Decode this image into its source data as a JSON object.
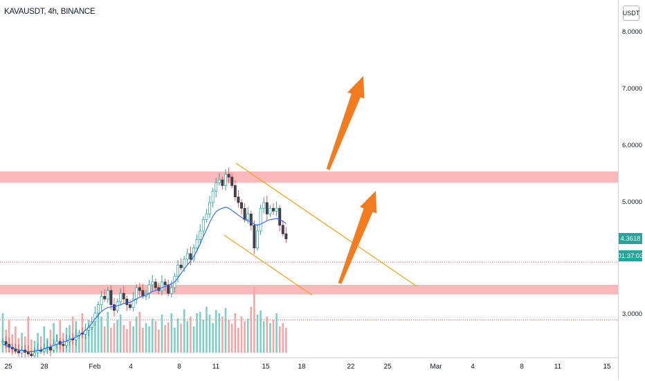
{
  "header": {
    "symbol_title": "KAVAUSDT, 4h, BINANCE"
  },
  "price_scale": {
    "currency": "USDT",
    "ticks": [
      {
        "value": 8.0,
        "label": "8.0000"
      },
      {
        "value": 7.0,
        "label": "7.0000"
      },
      {
        "value": 6.0,
        "label": "6.0000"
      },
      {
        "value": 5.0,
        "label": "5.0000"
      },
      {
        "value": 3.0,
        "label": "3.0000"
      }
    ],
    "last_price": "4.3618",
    "countdown": "01:37:03"
  },
  "time_axis": {
    "labels": [
      "25",
      "28",
      "Feb",
      "4",
      "8",
      "11",
      "15",
      "18",
      "22",
      "25",
      "Mar",
      "4",
      "8",
      "11",
      "15"
    ]
  },
  "colors": {
    "up": "#26a69a",
    "down": "#ef5350",
    "body_up": "#ffffff",
    "body_down": "#434651",
    "ma": "#2962ff",
    "zone": "#f7a1a6",
    "channel": "#f5a623",
    "arrow": "#f47b20",
    "dotted": "#ef5350"
  },
  "chart_data": {
    "type": "candlestick",
    "symbol": "KAVAUSDT",
    "interval": "4h",
    "exchange": "BINANCE",
    "last_price": 4.3618,
    "resistance_zone": [
      5.35,
      5.55
    ],
    "support_zone": [
      3.38,
      3.55
    ],
    "dotted_levels": [
      3.95,
      2.93
    ],
    "candle_closes": [
      2.55,
      2.5,
      2.45,
      2.42,
      2.38,
      2.35,
      2.4,
      2.36,
      2.33,
      2.3,
      2.35,
      2.4,
      2.38,
      2.42,
      2.45,
      2.4,
      2.5,
      2.55,
      2.5,
      2.48,
      2.55,
      2.6,
      2.58,
      2.65,
      2.7,
      2.68,
      2.75,
      2.8,
      2.9,
      3.05,
      3.2,
      3.35,
      3.3,
      3.45,
      3.2,
      3.1,
      3.25,
      3.4,
      3.3,
      3.2,
      3.15,
      3.3,
      3.5,
      3.45,
      3.35,
      3.4,
      3.55,
      3.6,
      3.5,
      3.45,
      3.6,
      3.55,
      3.4,
      3.5,
      3.7,
      3.9,
      3.85,
      4.0,
      4.1,
      4.0,
      4.2,
      4.35,
      4.5,
      4.7,
      4.8,
      5.0,
      5.2,
      5.35,
      5.4,
      5.3,
      5.5,
      5.45,
      5.3,
      5.1,
      5.0,
      4.9,
      4.7,
      4.8,
      4.6,
      4.2,
      4.5,
      4.9,
      5.0,
      4.8,
      4.9,
      4.85,
      4.9,
      4.6,
      4.45,
      4.36
    ],
    "ma_values": [
      2.5,
      2.48,
      2.46,
      2.44,
      2.42,
      2.4,
      2.39,
      2.38,
      2.37,
      2.37,
      2.38,
      2.39,
      2.4,
      2.42,
      2.44,
      2.46,
      2.48,
      2.5,
      2.52,
      2.54,
      2.56,
      2.58,
      2.6,
      2.63,
      2.66,
      2.7,
      2.75,
      2.8,
      2.87,
      2.95,
      3.02,
      3.08,
      3.12,
      3.15,
      3.16,
      3.17,
      3.18,
      3.2,
      3.22,
      3.23,
      3.24,
      3.27,
      3.3,
      3.33,
      3.35,
      3.37,
      3.4,
      3.43,
      3.45,
      3.47,
      3.5,
      3.52,
      3.54,
      3.57,
      3.6,
      3.67,
      3.75,
      3.83,
      3.9,
      3.97,
      4.05,
      4.15,
      4.27,
      4.4,
      4.52,
      4.65,
      4.76,
      4.84,
      4.88,
      4.9,
      4.92,
      4.9,
      4.86,
      4.82,
      4.78,
      4.74,
      4.7,
      4.68,
      4.66,
      4.62,
      4.6,
      4.62,
      4.65,
      4.68,
      4.7,
      4.71,
      4.72,
      4.7,
      4.67,
      4.63
    ],
    "volumes": [
      60,
      35,
      50,
      28,
      40,
      22,
      30,
      25,
      55,
      20,
      18,
      30,
      25,
      40,
      22,
      35,
      45,
      28,
      50,
      30,
      38,
      42,
      55,
      48,
      30,
      60,
      35,
      50,
      40,
      45,
      70,
      55,
      40,
      62,
      38,
      45,
      50,
      58,
      42,
      36,
      48,
      40,
      55,
      62,
      38,
      45,
      40,
      52,
      48,
      35,
      58,
      42,
      46,
      60,
      38,
      52,
      44,
      66,
      48,
      55,
      40,
      60,
      62,
      50,
      70,
      58,
      45,
      65,
      60,
      55,
      68,
      50,
      44,
      60,
      38,
      55,
      48,
      52,
      70,
      100,
      58,
      64,
      48,
      55,
      45,
      50,
      60,
      40,
      45,
      38
    ]
  }
}
